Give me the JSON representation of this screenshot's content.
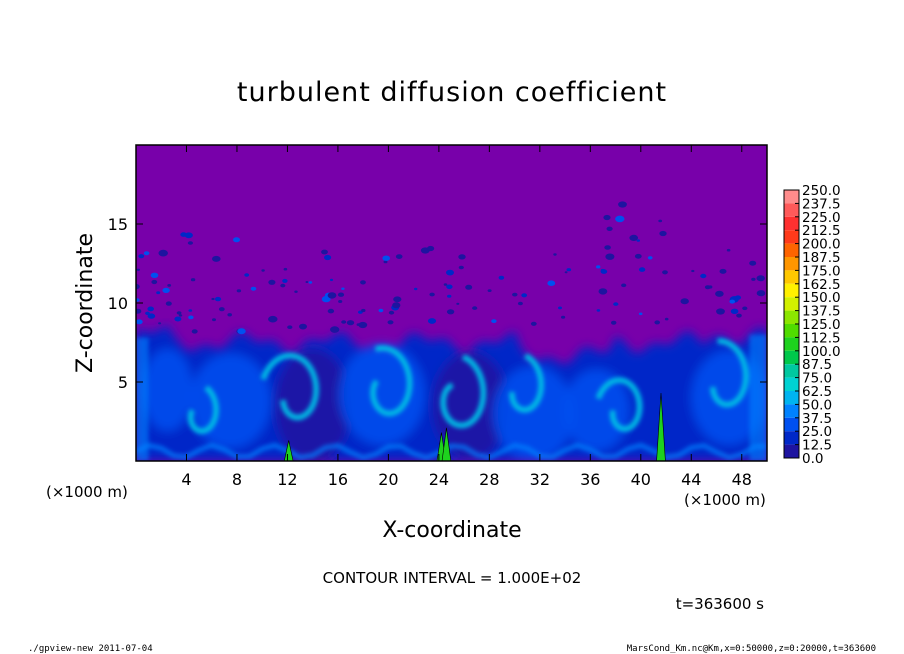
{
  "chart_data": {
    "type": "heatmap",
    "title": "turbulent diffusion coefficient",
    "xlabel": "X-coordinate",
    "ylabel": "Z-coordinate",
    "x_unit_label": "(×1000 m)",
    "y_unit_label": "(×1000 m)",
    "xlim": [
      0,
      50
    ],
    "ylim": [
      0,
      20
    ],
    "x_ticks": [
      4,
      8,
      12,
      16,
      20,
      24,
      28,
      32,
      36,
      40,
      44,
      48
    ],
    "y_ticks": [
      5,
      10,
      15
    ],
    "colorbar": {
      "levels": [
        "250.0",
        "237.5",
        "225.0",
        "212.5",
        "200.0",
        "187.5",
        "175.0",
        "162.5",
        "150.0",
        "137.5",
        "125.0",
        "112.5",
        "100.0",
        "87.5",
        "75.0",
        "62.5",
        "50.0",
        "37.5",
        "25.0",
        "12.5",
        "0.0"
      ],
      "colors": [
        "#ff8c8c",
        "#ff5a5a",
        "#ff3030",
        "#ff3a1a",
        "#ff6400",
        "#ff9600",
        "#ffc800",
        "#fff000",
        "#d2f000",
        "#8ce600",
        "#50dc00",
        "#1ed21e",
        "#00c84b",
        "#00c8a0",
        "#00d2d2",
        "#00b4f0",
        "#0082ff",
        "#0050f0",
        "#0028c8",
        "#1e14a0",
        "#7800aa"
      ]
    },
    "contour_interval_text": "CONTOUR INTERVAL = 1.000E+02",
    "time_text": "t=363600 s",
    "footer_left": "./gpview-new   2011-07-04",
    "footer_right": "MarsCond_Km.nc@Km,x=0:50000,z=0:20000,t=363600",
    "peaks": [
      {
        "x": 12.1,
        "z": 1.3,
        "value": 110
      },
      {
        "x": 24.2,
        "z": 1.8,
        "value": 120
      },
      {
        "x": 24.6,
        "z": 2.1,
        "value": 115
      },
      {
        "x": 41.6,
        "z": 4.3,
        "value": 115
      }
    ],
    "turbulent_layer_top_z": 7.5,
    "background_value": 0.0
  }
}
